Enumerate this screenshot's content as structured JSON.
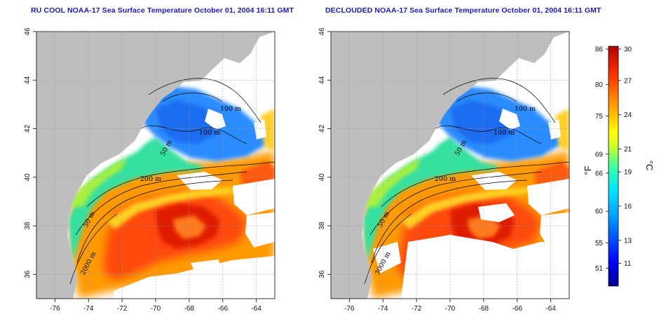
{
  "maps": [
    {
      "title": "RU COOL NOAA-17 Sea Surface Temperature October 01, 2004 16:11 GMT",
      "isobaths": [
        "100 m",
        "100 m",
        "50 m",
        "200 m",
        "50 m",
        "2000 m"
      ]
    },
    {
      "title": "DECLOUDED NOAA-17 Sea Surface Temperature October 01, 2004 16:11 GMT",
      "isobaths": [
        "100 m",
        "100 m",
        "50 m",
        "200 m",
        "50 m",
        "3000 m"
      ]
    }
  ],
  "axes": {
    "lon_ticks": [
      "-76",
      "-74",
      "-72",
      "-70",
      "-68",
      "-66",
      "-64"
    ],
    "lat_ticks": [
      "36",
      "38",
      "40",
      "42",
      "44",
      "46"
    ],
    "lon_range": [
      -77.1,
      -62.9
    ],
    "lat_range": [
      35.0,
      46.0
    ]
  },
  "colorbar": {
    "f_unit": "°F",
    "c_unit": "°C",
    "f_labels": [
      "86",
      "80",
      "75",
      "69",
      "66",
      "60",
      "55",
      "51"
    ],
    "c_labels": [
      "30",
      "27",
      "24",
      "21",
      "19",
      "16",
      "13",
      "11"
    ],
    "c_range": [
      9,
      30
    ],
    "colors": [
      "#00008c",
      "#0000ff",
      "#0096ff",
      "#00e6ff",
      "#40ff9f",
      "#c8ff2e",
      "#ffff00",
      "#ffaa00",
      "#ff3300",
      "#b40000"
    ]
  },
  "colors": {
    "land": "#bebebe",
    "coast": "#ffffff",
    "title": "#1a1ab4"
  }
}
